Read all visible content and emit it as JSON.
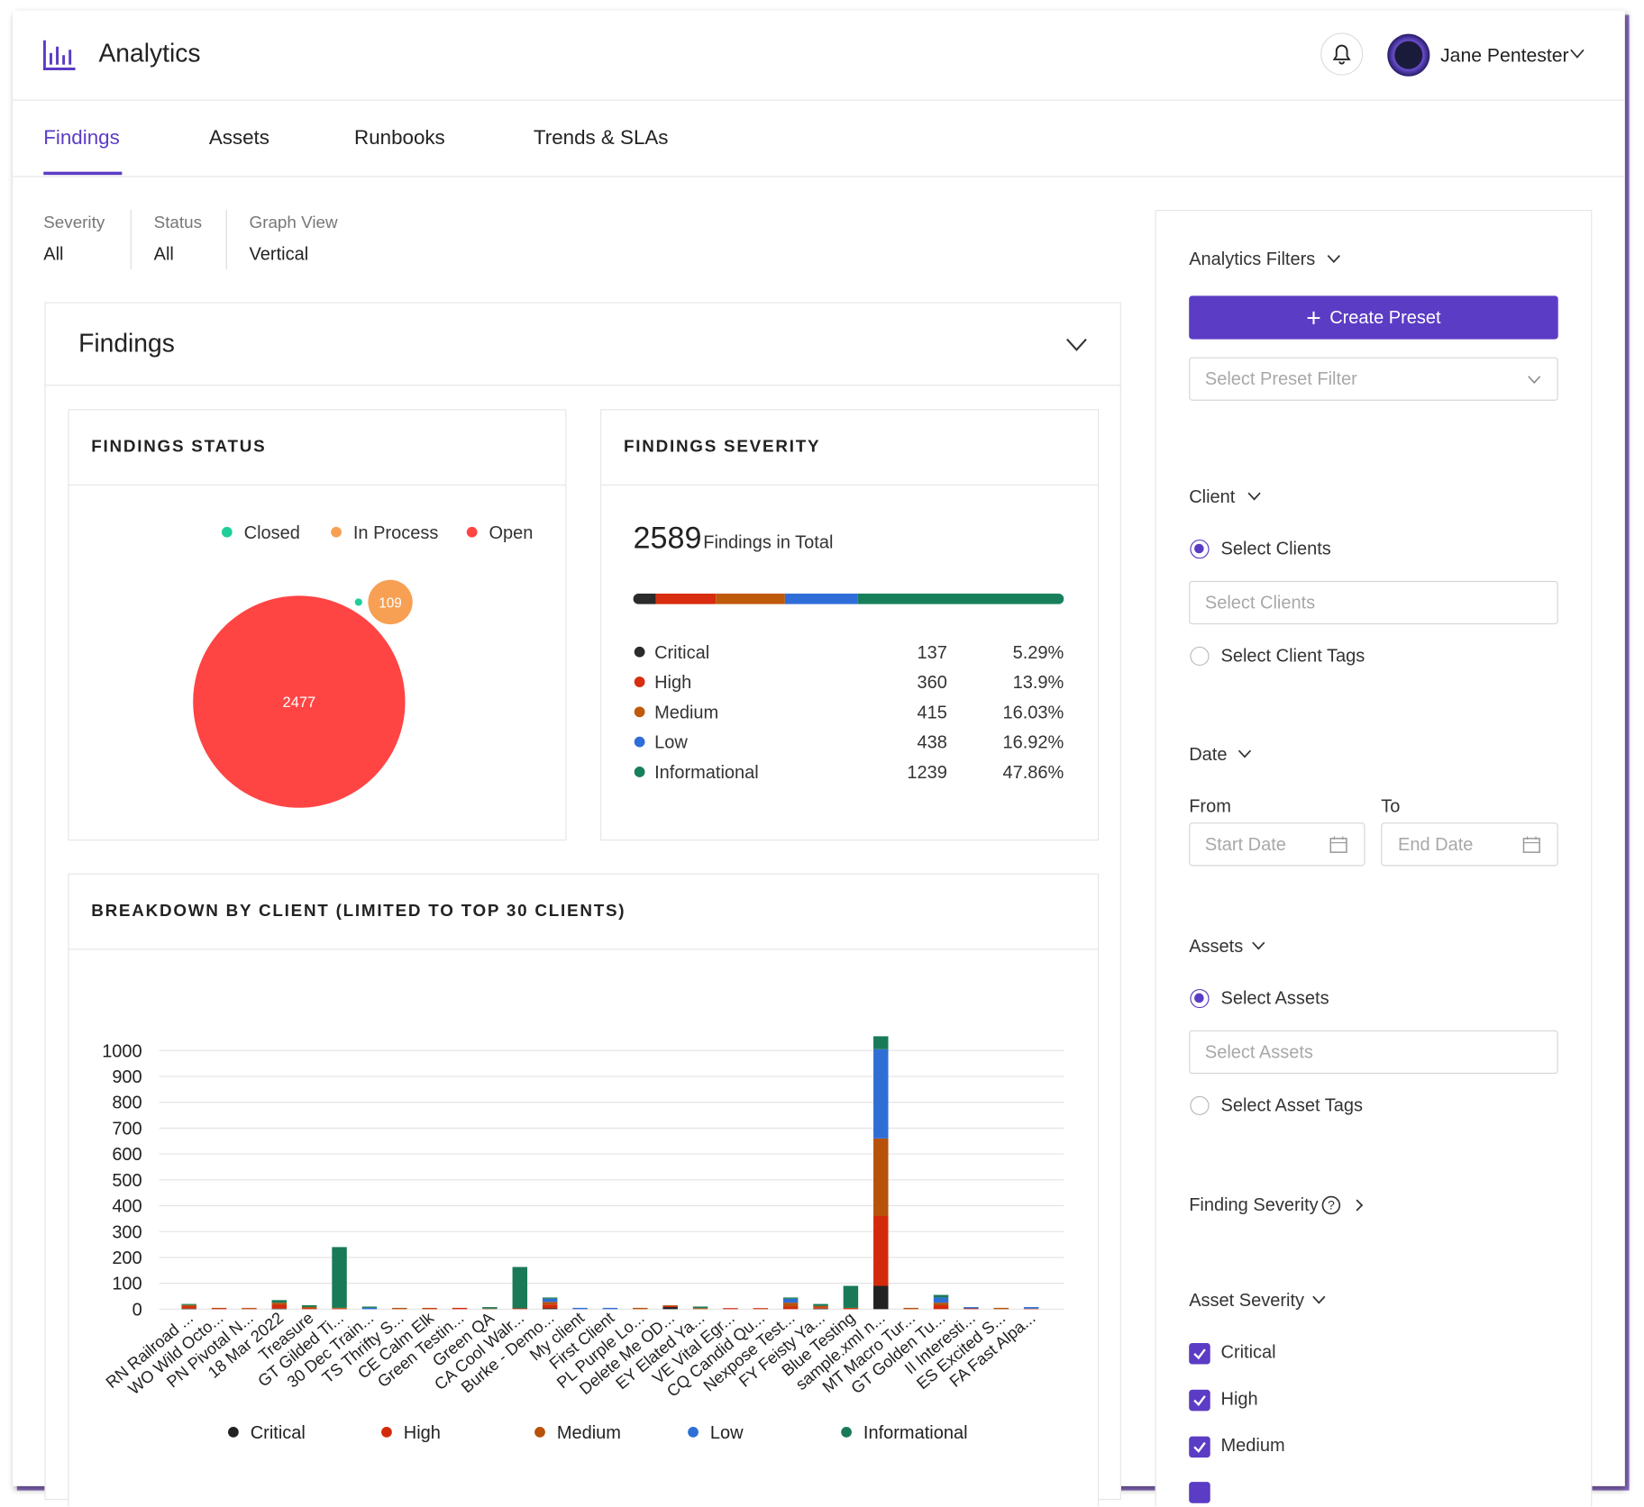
{
  "header": {
    "title": "Analytics",
    "user": "Jane Pentester"
  },
  "tabs": [
    "Findings",
    "Assets",
    "Runbooks",
    "Trends & SLAs"
  ],
  "filters": [
    {
      "label": "Severity",
      "value": "All"
    },
    {
      "label": "Status",
      "value": "All"
    },
    {
      "label": "Graph View",
      "value": "Vertical"
    }
  ],
  "findings": {
    "title": "Findings",
    "status_chart": {
      "type": "bubble",
      "title": "FINDINGS STATUS",
      "categories": [
        "Closed",
        "In Process",
        "Open"
      ],
      "values": [
        3,
        109,
        2477
      ],
      "colors": [
        "#1fcf9a",
        "#f7a054",
        "#ff4444"
      ]
    },
    "severity": {
      "title": "FINDINGS SEVERITY",
      "total": 2589,
      "total_label": "Findings in Total",
      "rows": [
        {
          "name": "Critical",
          "color": "#2b2b2b",
          "count": 137,
          "percent": "5.29%"
        },
        {
          "name": "High",
          "color": "#d82d0e",
          "count": 360,
          "percent": "13.9%"
        },
        {
          "name": "Medium",
          "color": "#c05a0b",
          "count": 415,
          "percent": "16.03%"
        },
        {
          "name": "Low",
          "color": "#2f6dd8",
          "count": 438,
          "percent": "16.92%"
        },
        {
          "name": "Informational",
          "color": "#17805a",
          "count": 1239,
          "percent": "47.86%"
        }
      ]
    },
    "breakdown": {
      "type": "bar",
      "stacked": true,
      "title": "BREAKDOWN BY CLIENT (LIMITED TO TOP 30 CLIENTS)",
      "categories": [
        "RN Railroad ...",
        "WO Wild Octo...",
        "PN Pivotal N...",
        "18 Mar 2022",
        "Treasure",
        "GT Gilded Ti...",
        "30 Dec Train...",
        "TS Thrifty S...",
        "CE Calm Elk",
        "Green Testin...",
        "Green QA",
        "CA Cool Walr...",
        "Burke - Demo...",
        "My client",
        "First Client",
        "PL Purple Lo...",
        "Delete Me OD...",
        "EY Elated Ya...",
        "VE Vital Egr...",
        "CQ Candid Qu...",
        "Nexpose Test...",
        "FY Feisty Ya...",
        "Blue Testing",
        "sample.xml n...",
        "MT Macro Tur...",
        "GT Golden Tu...",
        "II Interesti...",
        "ES Excited S...",
        "FA Fast Alpa..."
      ],
      "series": [
        {
          "name": "Critical",
          "color": "#222222",
          "values": [
            2,
            0,
            0,
            2,
            0,
            0,
            0,
            0,
            0,
            0,
            0,
            0,
            3,
            0,
            0,
            0,
            8,
            0,
            0,
            0,
            0,
            2,
            0,
            90,
            0,
            0,
            0,
            0,
            0
          ]
        },
        {
          "name": "High",
          "color": "#d42a0c",
          "values": [
            8,
            3,
            2,
            15,
            3,
            2,
            0,
            0,
            3,
            5,
            0,
            3,
            15,
            0,
            0,
            0,
            4,
            0,
            4,
            4,
            10,
            5,
            3,
            270,
            0,
            15,
            3,
            0,
            2
          ]
        },
        {
          "name": "Medium",
          "color": "#b85109",
          "values": [
            6,
            2,
            3,
            8,
            5,
            3,
            0,
            5,
            2,
            0,
            2,
            0,
            10,
            0,
            0,
            5,
            3,
            4,
            0,
            0,
            15,
            5,
            2,
            300,
            5,
            10,
            0,
            5,
            0
          ]
        },
        {
          "name": "Low",
          "color": "#2e6fd6",
          "values": [
            0,
            0,
            0,
            0,
            0,
            0,
            5,
            0,
            0,
            0,
            0,
            0,
            12,
            5,
            5,
            0,
            0,
            0,
            0,
            0,
            15,
            0,
            0,
            345,
            0,
            20,
            5,
            0,
            6
          ]
        },
        {
          "name": "Informational",
          "color": "#1a7a58",
          "values": [
            4,
            0,
            0,
            10,
            7,
            235,
            5,
            0,
            0,
            0,
            6,
            160,
            5,
            0,
            0,
            0,
            0,
            6,
            0,
            0,
            5,
            8,
            85,
            50,
            0,
            10,
            0,
            0,
            0
          ]
        }
      ],
      "ylim": [
        0,
        1100
      ],
      "yticks": [
        0,
        100,
        200,
        300,
        400,
        500,
        600,
        700,
        800,
        900,
        1000
      ],
      "grid": true
    }
  },
  "sidebar": {
    "title": "Analytics Filters",
    "create": "Create Preset",
    "preset_placeholder": "Select Preset Filter",
    "client": {
      "label": "Client",
      "options": [
        "Select Clients",
        "Select Client Tags"
      ],
      "placeholder": "Select Clients"
    },
    "date": {
      "label": "Date",
      "from": "From",
      "to": "To",
      "start": "Start Date",
      "end": "End Date"
    },
    "assets": {
      "label": "Assets",
      "options": [
        "Select Assets",
        "Select Asset Tags"
      ],
      "placeholder": "Select Assets"
    },
    "finding_severity": "Finding Severity",
    "asset_severity": {
      "label": "Asset Severity",
      "options": [
        "Critical",
        "High",
        "Medium"
      ]
    }
  }
}
